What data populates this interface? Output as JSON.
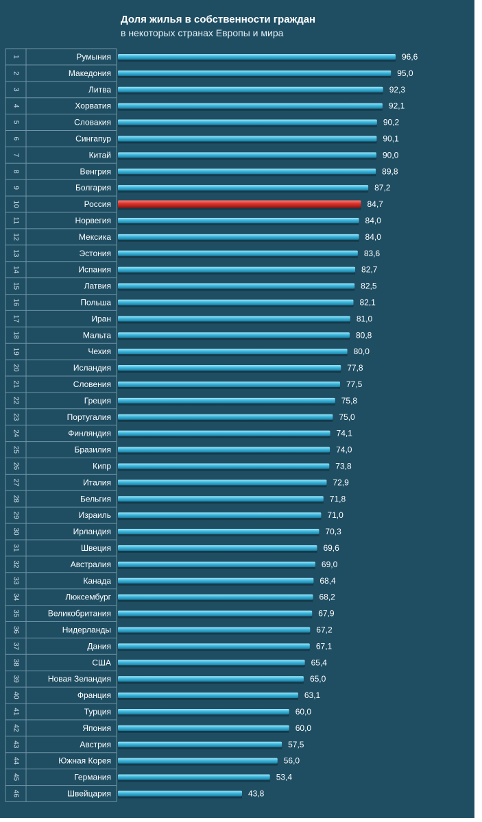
{
  "title": "Доля жилья в собственности граждан",
  "subtitle": "в некоторых странах Европы и мира",
  "colors": {
    "background": "#1f4e63",
    "bar": "#3fb8dc",
    "highlight": "#d8322c",
    "grid": "#6f93a4"
  },
  "chart_data": {
    "type": "bar",
    "orientation": "horizontal",
    "title": "Доля жилья в собственности граждан",
    "subtitle": "в некоторых странах Европы и мира",
    "xlabel": "",
    "ylabel": "",
    "xlim": [
      0,
      100
    ],
    "highlight": "Россия",
    "ranks": [
      "1",
      "2",
      "3",
      "4",
      "5",
      "6",
      "7",
      "8",
      "9",
      "10",
      "11",
      "12",
      "13",
      "14",
      "15",
      "16",
      "17",
      "18",
      "19",
      "20",
      "21",
      "22",
      "23",
      "24",
      "25",
      "26",
      "27",
      "28",
      "29",
      "30",
      "31",
      "32",
      "33",
      "34",
      "35",
      "36",
      "37",
      "38",
      "39",
      "40",
      "41",
      "42",
      "43",
      "44",
      "45",
      "46"
    ],
    "categories": [
      "Румыния",
      "Македония",
      "Литва",
      "Хорватия",
      "Словакия",
      "Сингапур",
      "Китай",
      "Венгрия",
      "Болгария",
      "Россия",
      "Норвегия",
      "Мексика",
      "Эстония",
      "Испания",
      "Латвия",
      "Польша",
      "Иран",
      "Мальта",
      "Чехия",
      "Исландия",
      "Словения",
      "Греция",
      "Португалия",
      "Финляндия",
      "Бразилия",
      "Кипр",
      "Италия",
      "Бельгия",
      "Израиль",
      "Ирландия",
      "Швеция",
      "Австралия",
      "Канада",
      "Люксембург",
      "Великобритания",
      "Нидерланды",
      "Дания",
      "США",
      "Новая Зеландия",
      "Франция",
      "Турция",
      "Япония",
      "Австрия",
      "Южная Корея",
      "Германия",
      "Швейцария"
    ],
    "values": [
      96.6,
      95.0,
      92.3,
      92.1,
      90.2,
      90.1,
      90.0,
      89.8,
      87.2,
      84.7,
      84.0,
      84.0,
      83.6,
      82.7,
      82.5,
      82.1,
      81.0,
      80.8,
      80.0,
      77.8,
      77.5,
      75.8,
      75.0,
      74.1,
      74.0,
      73.8,
      72.9,
      71.8,
      71.0,
      70.3,
      69.6,
      69.0,
      68.4,
      68.2,
      67.9,
      67.2,
      67.1,
      65.4,
      65.0,
      63.1,
      60.0,
      60.0,
      57.5,
      56.0,
      53.4,
      43.8
    ],
    "labels": [
      "96,6",
      "95,0",
      "92,3",
      "92,1",
      "90,2",
      "90,1",
      "90,0",
      "89,8",
      "87,2",
      "84,7",
      "84,0",
      "84,0",
      "83,6",
      "82,7",
      "82,5",
      "82,1",
      "81,0",
      "80,8",
      "80,0",
      "77,8",
      "77,5",
      "75,8",
      "75,0",
      "74,1",
      "74,0",
      "73,8",
      "72,9",
      "71,8",
      "71,0",
      "70,3",
      "69,6",
      "69,0",
      "68,4",
      "68,2",
      "67,9",
      "67,2",
      "67,1",
      "65,4",
      "65,0",
      "63,1",
      "60,0",
      "60,0",
      "57,5",
      "56,0",
      "53,4",
      "43,8"
    ]
  }
}
